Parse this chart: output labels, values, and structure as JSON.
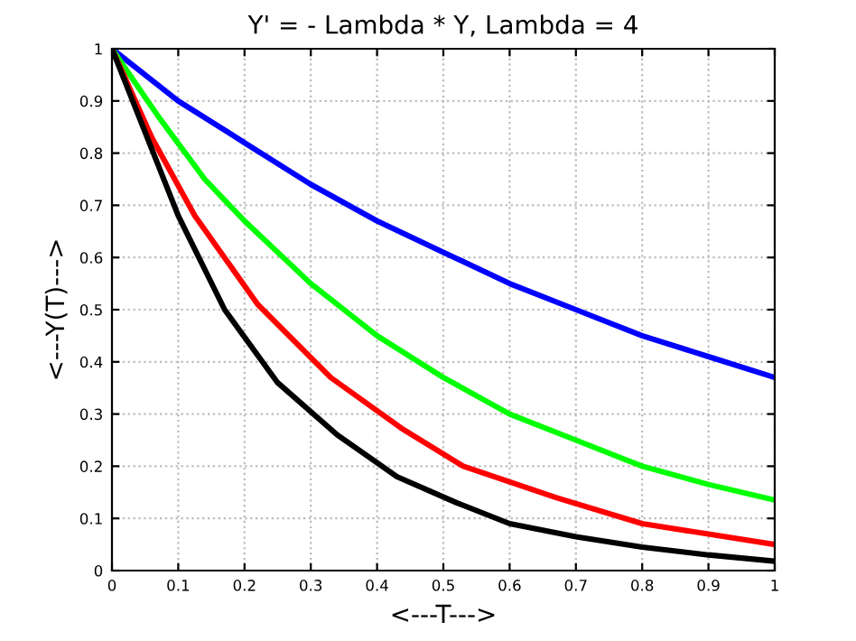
{
  "chart_data": {
    "type": "line",
    "title": "Y' = - Lambda * Y, Lambda = 4",
    "xlabel": "<---T--->",
    "ylabel": "<---Y(T)--->",
    "xlim": [
      0,
      1
    ],
    "ylim": [
      0,
      1
    ],
    "xticks": [
      0,
      0.1,
      0.2,
      0.3,
      0.4,
      0.5,
      0.6,
      0.7,
      0.8,
      0.9,
      1
    ],
    "yticks": [
      0,
      0.1,
      0.2,
      0.3,
      0.4,
      0.5,
      0.6,
      0.7,
      0.8,
      0.9,
      1
    ],
    "grid": true,
    "line_style": "solid",
    "marker": "none",
    "series": [
      {
        "color": "#0000ff",
        "x": [
          0,
          0.1,
          0.2,
          0.3,
          0.4,
          0.5,
          0.6,
          0.7,
          0.8,
          0.9,
          1
        ],
        "values": [
          1,
          0.9,
          0.82,
          0.74,
          0.67,
          0.61,
          0.55,
          0.5,
          0.45,
          0.41,
          0.37
        ]
      },
      {
        "color": "#00ff00",
        "x": [
          0,
          0.07,
          0.14,
          0.2,
          0.3,
          0.4,
          0.5,
          0.6,
          0.7,
          0.8,
          0.9,
          1
        ],
        "values": [
          1,
          0.87,
          0.75,
          0.67,
          0.55,
          0.45,
          0.37,
          0.3,
          0.25,
          0.2,
          0.165,
          0.135
        ]
      },
      {
        "color": "#ff0000",
        "x": [
          0,
          0.06,
          0.125,
          0.22,
          0.33,
          0.44,
          0.53,
          0.67,
          0.8,
          0.9,
          1
        ],
        "values": [
          1,
          0.83,
          0.68,
          0.51,
          0.37,
          0.27,
          0.2,
          0.14,
          0.09,
          0.07,
          0.05
        ]
      },
      {
        "color": "#000000",
        "x": [
          0,
          0.1,
          0.17,
          0.25,
          0.34,
          0.43,
          0.52,
          0.6,
          0.7,
          0.8,
          0.9,
          1
        ],
        "values": [
          1,
          0.68,
          0.5,
          0.36,
          0.26,
          0.18,
          0.13,
          0.09,
          0.065,
          0.045,
          0.03,
          0.018
        ]
      }
    ]
  }
}
